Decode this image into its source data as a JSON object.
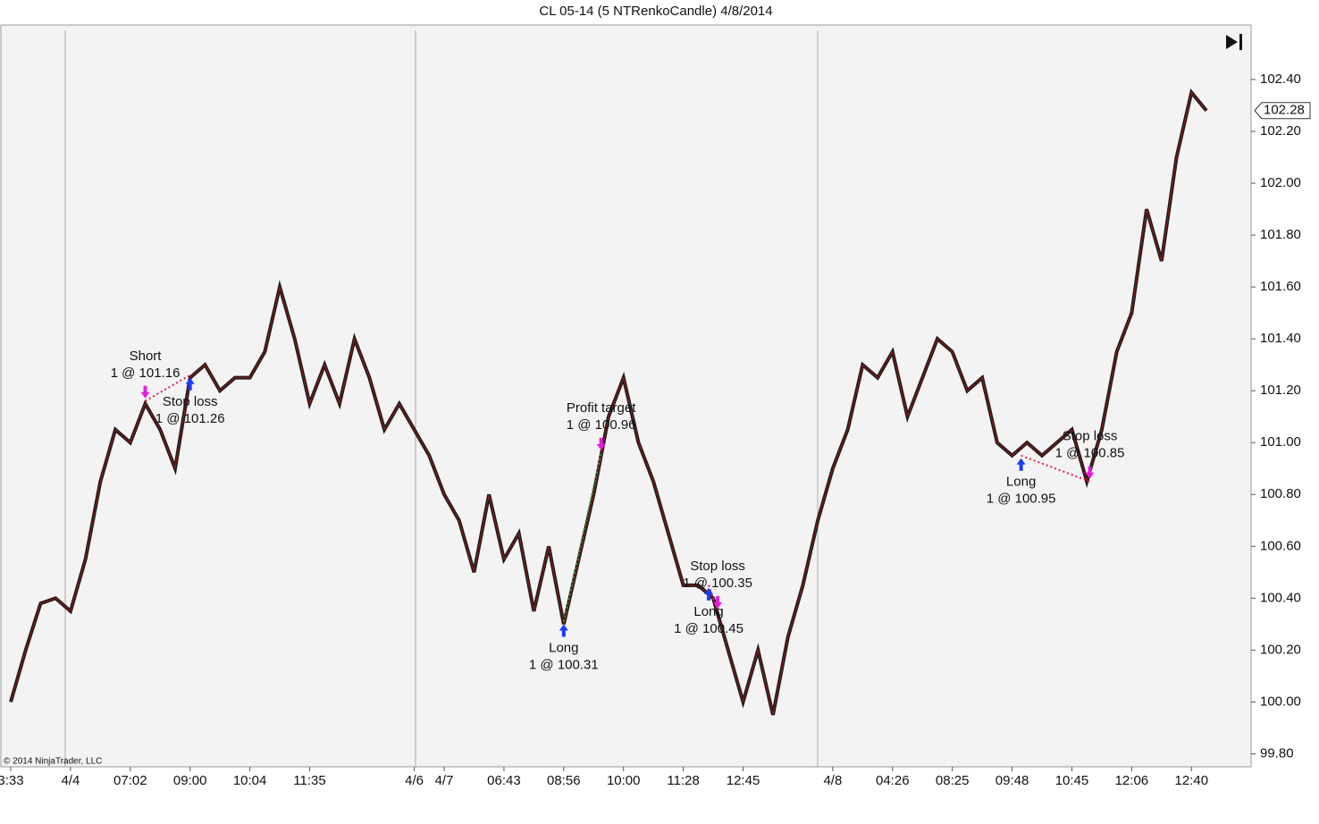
{
  "chart_data": {
    "type": "line",
    "title": "CL 05-14 (5 NTRenkoCandle)  4/8/2014",
    "copyright": "© 2014 NinjaTrader, LLC",
    "categories": [
      "3:33",
      null,
      null,
      null,
      "4/4",
      null,
      null,
      null,
      "07:02",
      null,
      null,
      null,
      "09:00",
      null,
      null,
      null,
      "10:04",
      null,
      null,
      null,
      "11:35",
      null,
      null,
      null,
      null,
      null,
      null,
      "4/6",
      null,
      "4/7",
      null,
      null,
      null,
      "06:43",
      null,
      null,
      null,
      "08:56",
      null,
      null,
      null,
      "10:00",
      null,
      null,
      null,
      "11:28",
      null,
      null,
      null,
      "12:45",
      null,
      null,
      null,
      null,
      null,
      "4/8",
      null,
      null,
      null,
      "04:26",
      null,
      null,
      null,
      "08:25",
      null,
      null,
      null,
      "09:48",
      null,
      null,
      null,
      "10:45",
      null,
      null,
      null,
      "12:06",
      null,
      null,
      null,
      "12:40",
      null
    ],
    "series": [
      {
        "name": "CL 05-14",
        "color": "#1a1a1a",
        "values": [
          100,
          100.2,
          100.38,
          100.4,
          100.35,
          100.55,
          100.85,
          101.05,
          101,
          101.15,
          101.05,
          100.9,
          101.25,
          101.3,
          101.2,
          101.25,
          101.25,
          101.35,
          101.6,
          101.4,
          101.15,
          101.3,
          101.15,
          101.4,
          101.25,
          101.05,
          101.15,
          101.05,
          100.95,
          100.8,
          100.7,
          100.5,
          100.8,
          100.55,
          100.65,
          100.35,
          100.6,
          100.3,
          100.55,
          100.8,
          101.1,
          101.25,
          101,
          100.85,
          100.65,
          100.45,
          100.45,
          100.4,
          100.2,
          100,
          100.2,
          99.95,
          100.25,
          100.45,
          100.7,
          100.9,
          101.05,
          101.3,
          101.25,
          101.35,
          101.1,
          101.25,
          101.4,
          101.35,
          101.2,
          101.25,
          101,
          100.95,
          101,
          100.95,
          101,
          101.05,
          100.85,
          101.05,
          101.35,
          101.5,
          101.9,
          101.7,
          102.1,
          102.35,
          102.28
        ]
      }
    ],
    "ylim": [
      99.75,
      102.61
    ],
    "yticks": [
      {
        "value": 99.8,
        "label": "99.80"
      },
      {
        "value": 100,
        "label": "100.00"
      },
      {
        "value": 100.2,
        "label": "100.20"
      },
      {
        "value": 100.4,
        "label": "100.40"
      },
      {
        "value": 100.6,
        "label": "100.60"
      },
      {
        "value": 100.8,
        "label": "100.80"
      },
      {
        "value": 101,
        "label": "101.00"
      },
      {
        "value": 101.2,
        "label": "101.20"
      },
      {
        "value": 101.4,
        "label": "101.40"
      },
      {
        "value": 101.6,
        "label": "101.60"
      },
      {
        "value": 101.8,
        "label": "101.80"
      },
      {
        "value": 102,
        "label": "102.00"
      },
      {
        "value": 102.2,
        "label": "102.20"
      },
      {
        "value": 102.4,
        "label": "102.40"
      }
    ],
    "trades": [
      {
        "name": "Short",
        "text": "1 @ 101.16",
        "price": 101.16,
        "index": 9,
        "side": "sell"
      },
      {
        "name": "Stop loss",
        "text": "1 @ 101.26",
        "price": 101.26,
        "index": 12,
        "side": "buy"
      },
      {
        "name": "Long",
        "text": "1 @ 100.31",
        "price": 100.31,
        "index": 37,
        "side": "buy"
      },
      {
        "name": "Profit target",
        "text": "1 @ 100.96",
        "price": 100.96,
        "index": 39.5,
        "side": "sell"
      },
      {
        "name": "Long",
        "text": "1 @ 100.45",
        "price": 100.45,
        "index": 46.7,
        "side": "buy"
      },
      {
        "name": "Stop loss",
        "text": "1 @ 100.35",
        "price": 100.35,
        "index": 47.3,
        "side": "sell"
      },
      {
        "name": "Long",
        "text": "1 @ 100.95",
        "price": 100.95,
        "index": 67.6,
        "side": "buy"
      },
      {
        "name": "Stop loss",
        "text": "1 @ 100.85",
        "price": 100.85,
        "index": 72.2,
        "side": "sell"
      }
    ],
    "trade_pairs": [
      {
        "entry": 0,
        "exit": 1,
        "color": "#e8194f"
      },
      {
        "entry": 2,
        "exit": 3,
        "color": "#2e9a2e"
      },
      {
        "entry": 4,
        "exit": 5,
        "color": "#e8194f"
      },
      {
        "entry": 6,
        "exit": 7,
        "color": "#e8194f"
      }
    ],
    "buy_color": "#1a3cff",
    "sell_color": "#e01ee0"
  }
}
